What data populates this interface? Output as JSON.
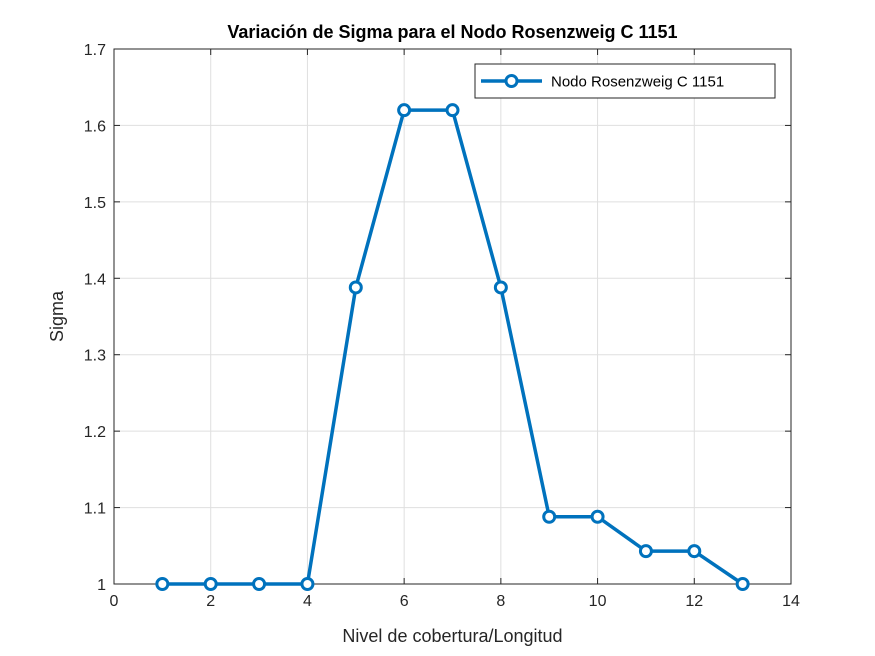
{
  "chart_data": {
    "type": "line",
    "title": "Variación de Sigma para el Nodo Rosenzweig C 1151",
    "xlabel": "Nivel de cobertura/Longitud",
    "ylabel": "Sigma",
    "xlim": [
      0,
      14
    ],
    "ylim": [
      1,
      1.7
    ],
    "xticks": [
      0,
      2,
      4,
      6,
      8,
      10,
      12,
      14
    ],
    "xtick_labels": [
      "0",
      "2",
      "4",
      "6",
      "8",
      "10",
      "12",
      "14"
    ],
    "yticks": [
      1,
      1.1,
      1.2,
      1.3,
      1.4,
      1.5,
      1.6,
      1.7
    ],
    "ytick_labels": [
      "1",
      "1.1",
      "1.2",
      "1.3",
      "1.4",
      "1.5",
      "1.6",
      "1.7"
    ],
    "grid": true,
    "legend_position": "top-right",
    "series": [
      {
        "name": "Nodo Rosenzweig C 1151",
        "color": "#0072BD",
        "marker": "circle",
        "x": [
          1,
          2,
          3,
          4,
          5,
          6,
          7,
          8,
          9,
          10,
          11,
          12,
          13
        ],
        "y": [
          1.0,
          1.0,
          1.0,
          1.0,
          1.388,
          1.62,
          1.62,
          1.388,
          1.088,
          1.088,
          1.043,
          1.043,
          1.0
        ]
      }
    ]
  }
}
